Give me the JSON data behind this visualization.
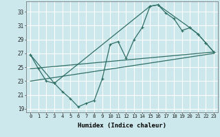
{
  "xlabel": "Humidex (Indice chaleur)",
  "bg_color": "#cce8ec",
  "grid_color": "#ffffff",
  "line_color": "#2e6e65",
  "xlim": [
    -0.5,
    23.5
  ],
  "ylim": [
    18.5,
    34.5
  ],
  "yticks": [
    19,
    21,
    23,
    25,
    27,
    29,
    31,
    33
  ],
  "xticks": [
    0,
    1,
    2,
    3,
    4,
    5,
    6,
    7,
    8,
    9,
    10,
    11,
    12,
    13,
    14,
    15,
    16,
    17,
    18,
    19,
    20,
    21,
    22,
    23
  ],
  "series1_x": [
    0,
    1,
    2,
    3,
    4,
    5,
    6,
    7,
    8,
    9,
    10,
    11,
    12,
    13,
    14,
    15,
    16,
    17,
    18,
    19,
    20,
    21,
    22,
    23
  ],
  "series1_y": [
    26.8,
    24.8,
    23.0,
    22.7,
    21.5,
    20.5,
    19.3,
    19.8,
    20.2,
    23.3,
    28.3,
    28.7,
    26.3,
    29.0,
    30.7,
    33.8,
    34.0,
    32.8,
    32.0,
    30.3,
    30.7,
    29.8,
    28.5,
    27.2
  ],
  "series2_x": [
    0,
    3,
    15,
    16,
    20,
    21,
    22,
    23
  ],
  "series2_y": [
    26.8,
    22.7,
    33.8,
    34.0,
    30.7,
    29.8,
    28.5,
    27.2
  ],
  "series3_x": [
    0,
    23
  ],
  "series3_y": [
    24.8,
    27.2
  ],
  "series4_x": [
    0,
    23
  ],
  "series4_y": [
    23.0,
    27.0
  ]
}
